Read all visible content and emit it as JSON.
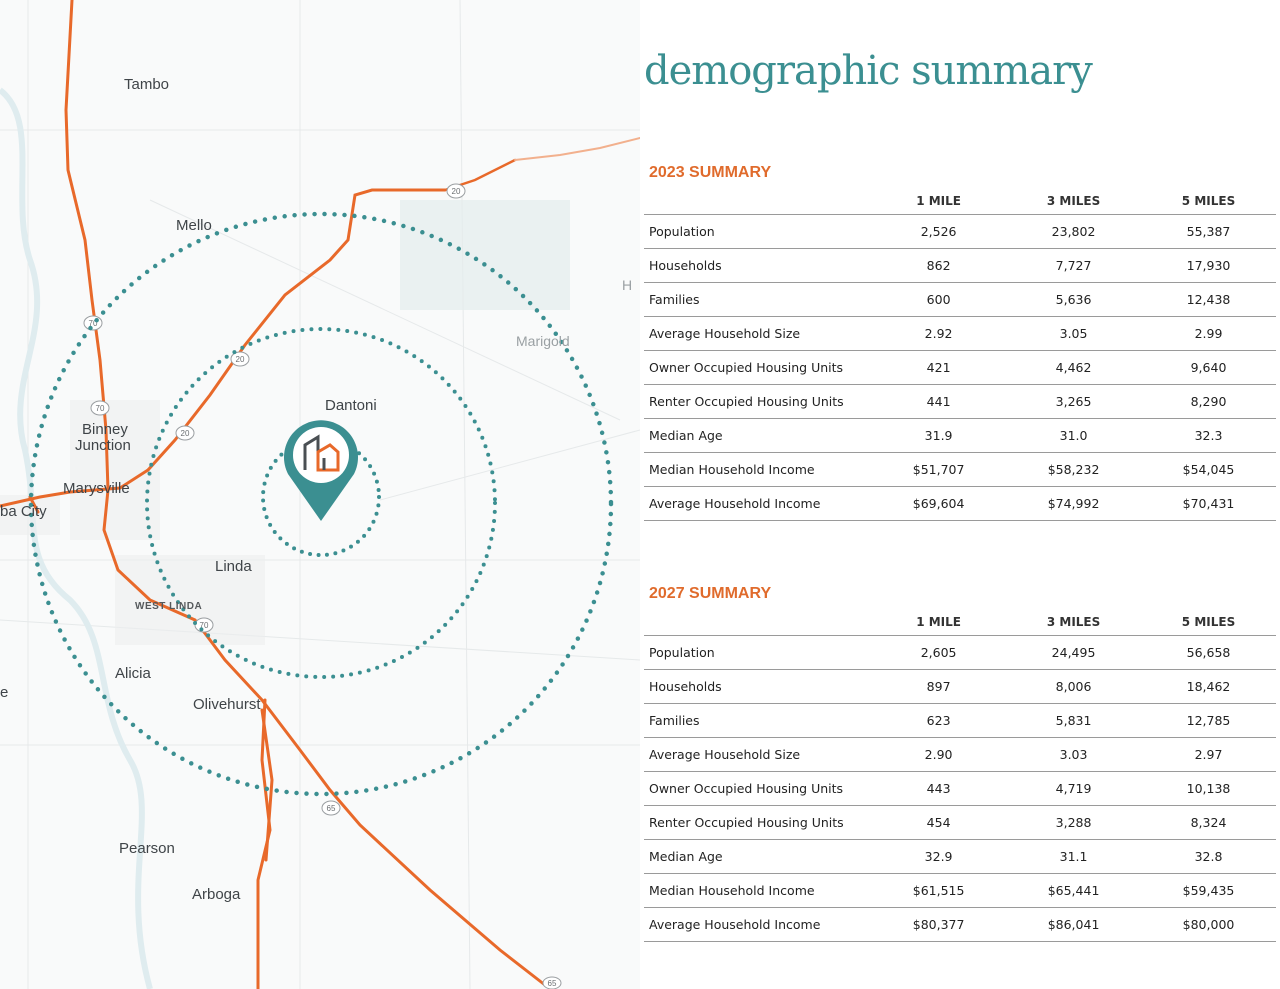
{
  "page_title": "demographic summary",
  "map": {
    "labels": {
      "tambo": "Tambo",
      "mello": "Mello",
      "marigold": "Marigold",
      "dantoni": "Dantoni",
      "binney": "Binney",
      "junction": "Junction",
      "marysville": "Marysville",
      "yuba_city": "ba City",
      "linda": "Linda",
      "west_linda": "WEST LINDA",
      "alicia": "Alicia",
      "olivehurst": "Olivehurst",
      "pearson": "Pearson",
      "arboga": "Arboga",
      "edge_e": "e",
      "edge_h": "H"
    },
    "shields": {
      "s20a": "20",
      "s20b": "20",
      "s20c": "20",
      "s70a": "70",
      "s70b": "70",
      "s70c": "70",
      "s65a": "65",
      "s65b": "65"
    },
    "colors": {
      "road": "#e8692a",
      "ring": "#3b8f91",
      "pin": "#3b8f91",
      "logo_accent": "#e8692a"
    },
    "marker_icon": "location-pin-icon"
  },
  "summary_2023": {
    "title": "2023 SUMMARY",
    "headers": [
      "",
      "1 MILE",
      "3 MILES",
      "5 MILES"
    ],
    "rows": [
      [
        "Population",
        "2,526",
        "23,802",
        "55,387"
      ],
      [
        "Households",
        "862",
        "7,727",
        "17,930"
      ],
      [
        "Families",
        "600",
        "5,636",
        "12,438"
      ],
      [
        "Average Household Size",
        "2.92",
        "3.05",
        "2.99"
      ],
      [
        "Owner Occupied Housing Units",
        "421",
        "4,462",
        "9,640"
      ],
      [
        "Renter Occupied Housing Units",
        "441",
        "3,265",
        "8,290"
      ],
      [
        "Median Age",
        "31.9",
        "31.0",
        "32.3"
      ],
      [
        "Median Household Income",
        "$51,707",
        "$58,232",
        "$54,045"
      ],
      [
        "Average Household Income",
        "$69,604",
        "$74,992",
        "$70,431"
      ]
    ]
  },
  "summary_2027": {
    "title": "2027 SUMMARY",
    "headers": [
      "",
      "1 MILE",
      "3 MILES",
      "5 MILES"
    ],
    "rows": [
      [
        "Population",
        "2,605",
        "24,495",
        "56,658"
      ],
      [
        "Households",
        "897",
        "8,006",
        "18,462"
      ],
      [
        "Families",
        "623",
        "5,831",
        "12,785"
      ],
      [
        "Average Household Size",
        "2.90",
        "3.03",
        "2.97"
      ],
      [
        "Owner Occupied Housing Units",
        "443",
        "4,719",
        "10,138"
      ],
      [
        "Renter Occupied Housing Units",
        "454",
        "3,288",
        "8,324"
      ],
      [
        "Median Age",
        "32.9",
        "31.1",
        "32.8"
      ],
      [
        "Median Household Income",
        "$61,515",
        "$65,441",
        "$59,435"
      ],
      [
        "Average Household Income",
        "$80,377",
        "$86,041",
        "$80,000"
      ]
    ]
  }
}
